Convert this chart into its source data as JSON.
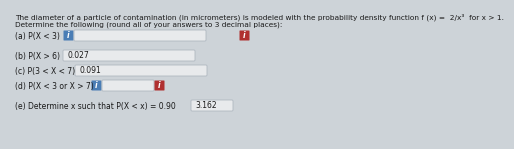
{
  "title_line1": "The diameter of a particle of contamination (in micrometers) is modeled with the probability density function f (x) =  2/x³  for x > 1.",
  "title_line2": "Determine the following (round all of your answers to 3 decimal places):",
  "rows": [
    {
      "label": "(a) P(X < 3)",
      "box_text": "",
      "box_wide": true,
      "blue_btn": true,
      "red_btn": true
    },
    {
      "label": "(b) P(X > 6)",
      "box_text": "0.027",
      "box_wide": true,
      "blue_btn": false,
      "red_btn": false
    },
    {
      "label": "(c) P(3 < X < 7)",
      "box_text": "0.091",
      "box_wide": true,
      "blue_btn": false,
      "red_btn": false
    },
    {
      "label": "(d) P(X < 3 or X > 7)",
      "box_text": "",
      "box_wide": false,
      "blue_btn": true,
      "red_btn": true
    },
    {
      "label": "(e) Determine x such that P(X < x) = 0.90",
      "box_text": "3.162",
      "box_wide": false,
      "blue_btn": false,
      "red_btn": false
    }
  ],
  "bg_color": "#cdd3d8",
  "box_bg": "#e8eaec",
  "box_border": "#b0b8c0",
  "info_blue": "#4a7db5",
  "info_red": "#b03030",
  "text_color": "#1a1a1a",
  "font_size": 5.5,
  "title_font_size": 5.3
}
